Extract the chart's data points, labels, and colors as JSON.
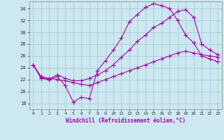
{
  "xlabel": "Windchill (Refroidissement éolien,°C)",
  "bg_color": "#cce8f0",
  "line_color": "#aa00aa",
  "grid_color": "#a8ccd8",
  "xlim": [
    -0.5,
    23.5
  ],
  "ylim": [
    17.0,
    35.2
  ],
  "yticks": [
    18,
    20,
    22,
    24,
    26,
    28,
    30,
    32,
    34
  ],
  "xticks": [
    0,
    1,
    2,
    3,
    4,
    5,
    6,
    7,
    8,
    9,
    10,
    11,
    12,
    13,
    14,
    15,
    16,
    17,
    18,
    19,
    20,
    21,
    22,
    23
  ],
  "series1_x": [
    0,
    1,
    2,
    3,
    4,
    5,
    6,
    7,
    8,
    9,
    10,
    11,
    12,
    13,
    14,
    15,
    16,
    17,
    18,
    19,
    20,
    21,
    22,
    23
  ],
  "series1_y": [
    24.5,
    22.2,
    22.0,
    22.5,
    21.0,
    18.2,
    19.0,
    18.8,
    23.5,
    25.2,
    27.0,
    29.0,
    31.8,
    33.0,
    34.2,
    34.8,
    34.5,
    34.0,
    32.0,
    29.5,
    28.2,
    26.0,
    25.5,
    25.0
  ],
  "series2_x": [
    0,
    1,
    2,
    3,
    4,
    5,
    6,
    7,
    8,
    9,
    10,
    11,
    12,
    13,
    14,
    15,
    16,
    17,
    18,
    19,
    20,
    21,
    22,
    23
  ],
  "series2_y": [
    24.5,
    22.3,
    22.1,
    22.8,
    22.2,
    21.8,
    21.8,
    22.2,
    22.8,
    23.5,
    24.5,
    25.8,
    27.0,
    28.5,
    29.5,
    30.8,
    31.5,
    32.5,
    33.5,
    33.8,
    32.5,
    28.0,
    27.0,
    26.2
  ],
  "series3_x": [
    0,
    1,
    2,
    3,
    4,
    5,
    6,
    7,
    8,
    9,
    10,
    11,
    12,
    13,
    14,
    15,
    16,
    17,
    18,
    19,
    20,
    21,
    22,
    23
  ],
  "series3_y": [
    24.5,
    22.5,
    22.2,
    22.0,
    21.8,
    21.5,
    21.2,
    21.0,
    21.5,
    22.0,
    22.5,
    23.0,
    23.5,
    24.0,
    24.5,
    25.0,
    25.5,
    26.0,
    26.5,
    26.8,
    26.5,
    26.2,
    26.0,
    25.8
  ]
}
